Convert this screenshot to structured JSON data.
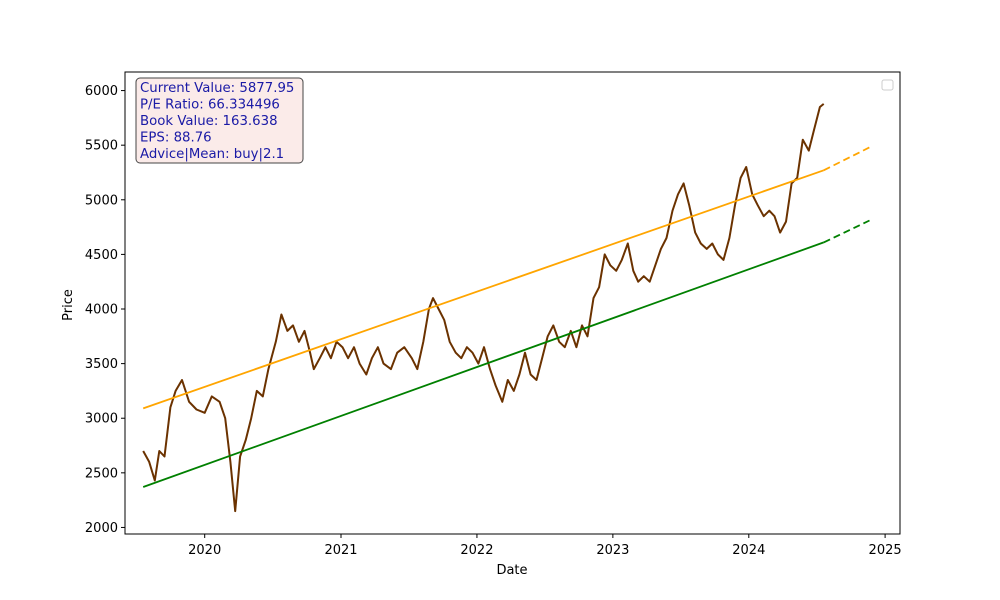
{
  "chart_data": {
    "type": "line",
    "title": "",
    "xlabel": "Date",
    "ylabel": "Price",
    "xlim": [
      "2019-06-01",
      "2025-02-10"
    ],
    "ylim": [
      1940,
      6170
    ],
    "x_ticks": [
      "2020",
      "2021",
      "2022",
      "2023",
      "2024",
      "2025"
    ],
    "y_ticks": [
      2000,
      2500,
      3000,
      3500,
      4000,
      4500,
      5000,
      5500,
      6000
    ],
    "grid": false,
    "legend": {
      "placement": "top-right",
      "entries": []
    },
    "info_box": {
      "lines": [
        "Current Value: 5877.95",
        "P/E Ratio: 66.334496",
        "Book Value: 163.638",
        "EPS: 88.76",
        "Advice|Mean: buy|2.1"
      ],
      "text_color": "#1a1aa6",
      "background": "#fbe9e7"
    },
    "series": [
      {
        "style": "solid",
        "color": "#6b3200",
        "points": [
          [
            "2019-07-20",
            2700
          ],
          [
            "2019-08-05",
            2600
          ],
          [
            "2019-08-20",
            2430
          ],
          [
            "2019-09-01",
            2700
          ],
          [
            "2019-09-15",
            2650
          ],
          [
            "2019-10-01",
            3100
          ],
          [
            "2019-10-15",
            3250
          ],
          [
            "2019-11-01",
            3350
          ],
          [
            "2019-11-20",
            3150
          ],
          [
            "2019-12-10",
            3080
          ],
          [
            "2020-01-01",
            3050
          ],
          [
            "2020-01-20",
            3200
          ],
          [
            "2020-02-10",
            3150
          ],
          [
            "2020-02-25",
            3000
          ],
          [
            "2020-03-10",
            2600
          ],
          [
            "2020-03-23",
            2150
          ],
          [
            "2020-04-05",
            2650
          ],
          [
            "2020-04-20",
            2800
          ],
          [
            "2020-05-05",
            3000
          ],
          [
            "2020-05-20",
            3250
          ],
          [
            "2020-06-05",
            3200
          ],
          [
            "2020-06-20",
            3450
          ],
          [
            "2020-07-10",
            3700
          ],
          [
            "2020-07-25",
            3950
          ],
          [
            "2020-08-10",
            3800
          ],
          [
            "2020-08-25",
            3850
          ],
          [
            "2020-09-10",
            3700
          ],
          [
            "2020-09-25",
            3800
          ],
          [
            "2020-10-10",
            3600
          ],
          [
            "2020-10-20",
            3450
          ],
          [
            "2020-11-05",
            3550
          ],
          [
            "2020-11-20",
            3650
          ],
          [
            "2020-12-05",
            3550
          ],
          [
            "2020-12-20",
            3700
          ],
          [
            "2021-01-05",
            3650
          ],
          [
            "2021-01-20",
            3550
          ],
          [
            "2021-02-05",
            3650
          ],
          [
            "2021-02-20",
            3500
          ],
          [
            "2021-03-10",
            3400
          ],
          [
            "2021-03-25",
            3550
          ],
          [
            "2021-04-10",
            3650
          ],
          [
            "2021-04-25",
            3500
          ],
          [
            "2021-05-15",
            3450
          ],
          [
            "2021-06-01",
            3600
          ],
          [
            "2021-06-20",
            3650
          ],
          [
            "2021-07-10",
            3550
          ],
          [
            "2021-07-25",
            3450
          ],
          [
            "2021-08-10",
            3700
          ],
          [
            "2021-08-25",
            4000
          ],
          [
            "2021-09-05",
            4100
          ],
          [
            "2021-09-20",
            4000
          ],
          [
            "2021-10-05",
            3900
          ],
          [
            "2021-10-20",
            3700
          ],
          [
            "2021-11-05",
            3600
          ],
          [
            "2021-11-20",
            3550
          ],
          [
            "2021-12-05",
            3650
          ],
          [
            "2021-12-20",
            3600
          ],
          [
            "2022-01-05",
            3500
          ],
          [
            "2022-01-20",
            3650
          ],
          [
            "2022-02-05",
            3450
          ],
          [
            "2022-02-20",
            3300
          ],
          [
            "2022-03-10",
            3150
          ],
          [
            "2022-03-25",
            3350
          ],
          [
            "2022-04-10",
            3250
          ],
          [
            "2022-04-25",
            3400
          ],
          [
            "2022-05-10",
            3600
          ],
          [
            "2022-05-25",
            3400
          ],
          [
            "2022-06-10",
            3350
          ],
          [
            "2022-06-25",
            3550
          ],
          [
            "2022-07-10",
            3750
          ],
          [
            "2022-07-25",
            3850
          ],
          [
            "2022-08-10",
            3700
          ],
          [
            "2022-08-25",
            3650
          ],
          [
            "2022-09-10",
            3800
          ],
          [
            "2022-09-25",
            3650
          ],
          [
            "2022-10-10",
            3850
          ],
          [
            "2022-10-25",
            3750
          ],
          [
            "2022-11-10",
            4100
          ],
          [
            "2022-11-25",
            4200
          ],
          [
            "2022-12-10",
            4500
          ],
          [
            "2022-12-25",
            4400
          ],
          [
            "2023-01-10",
            4350
          ],
          [
            "2023-01-25",
            4450
          ],
          [
            "2023-02-10",
            4600
          ],
          [
            "2023-02-25",
            4350
          ],
          [
            "2023-03-10",
            4250
          ],
          [
            "2023-03-25",
            4300
          ],
          [
            "2023-04-10",
            4250
          ],
          [
            "2023-04-25",
            4400
          ],
          [
            "2023-05-10",
            4550
          ],
          [
            "2023-05-25",
            4650
          ],
          [
            "2023-06-10",
            4900
          ],
          [
            "2023-06-25",
            5050
          ],
          [
            "2023-07-10",
            5150
          ],
          [
            "2023-07-25",
            4950
          ],
          [
            "2023-08-10",
            4700
          ],
          [
            "2023-08-25",
            4600
          ],
          [
            "2023-09-10",
            4550
          ],
          [
            "2023-09-25",
            4600
          ],
          [
            "2023-10-10",
            4500
          ],
          [
            "2023-10-25",
            4450
          ],
          [
            "2023-11-10",
            4650
          ],
          [
            "2023-11-25",
            4950
          ],
          [
            "2023-12-10",
            5200
          ],
          [
            "2023-12-25",
            5300
          ],
          [
            "2024-01-10",
            5050
          ],
          [
            "2024-01-25",
            4950
          ],
          [
            "2024-02-10",
            4850
          ],
          [
            "2024-02-25",
            4900
          ],
          [
            "2024-03-10",
            4850
          ],
          [
            "2024-03-25",
            4700
          ],
          [
            "2024-04-10",
            4800
          ],
          [
            "2024-04-25",
            5150
          ],
          [
            "2024-05-10",
            5200
          ],
          [
            "2024-05-25",
            5550
          ],
          [
            "2024-06-10",
            5450
          ],
          [
            "2024-06-25",
            5650
          ],
          [
            "2024-07-10",
            5850
          ],
          [
            "2024-07-20",
            5878
          ]
        ]
      },
      {
        "style": "solid",
        "color": "#ffa500",
        "points": [
          [
            "2019-07-20",
            3090
          ],
          [
            "2024-07-20",
            5270
          ]
        ]
      },
      {
        "style": "dashed",
        "color": "#ffa500",
        "points": [
          [
            "2024-07-20",
            5270
          ],
          [
            "2024-11-20",
            5480
          ]
        ]
      },
      {
        "style": "solid",
        "color": "#008000",
        "points": [
          [
            "2019-07-20",
            2370
          ],
          [
            "2024-07-20",
            4610
          ]
        ]
      },
      {
        "style": "dashed",
        "color": "#008000",
        "points": [
          [
            "2024-07-20",
            4610
          ],
          [
            "2024-11-20",
            4810
          ]
        ]
      }
    ]
  }
}
